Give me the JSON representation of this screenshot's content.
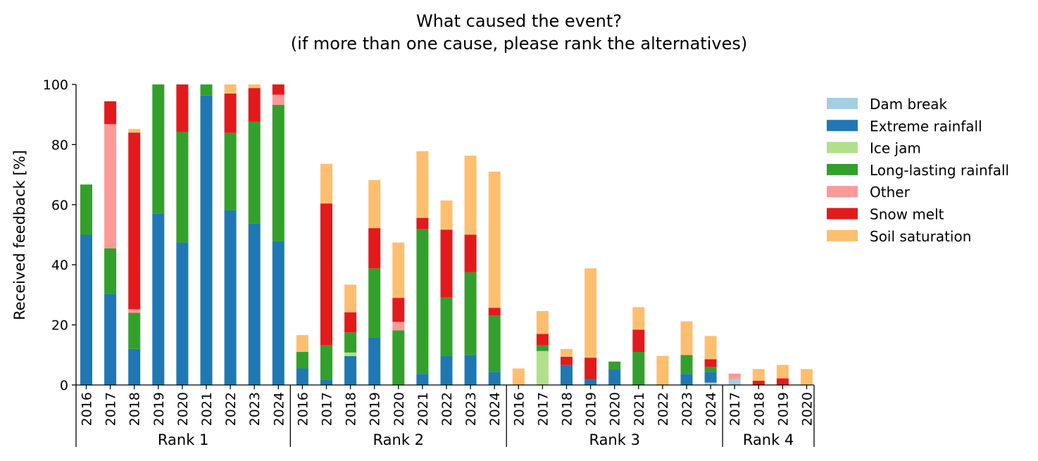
{
  "chart_data": {
    "type": "bar",
    "stacked": true,
    "title": [
      "What caused the event?",
      "(if more than one cause, please rank the alternatives)"
    ],
    "xlabel": "",
    "ylabel": "Received feedback [%]",
    "ylim": [
      0,
      100
    ],
    "yticks": [
      0,
      20,
      40,
      60,
      80,
      100
    ],
    "legend_position": "top-right, outside plot",
    "series": [
      {
        "name": "Dam break",
        "color": "#a6cee3"
      },
      {
        "name": "Extreme rainfall",
        "color": "#1f78b4"
      },
      {
        "name": "Ice jam",
        "color": "#b2df8a"
      },
      {
        "name": "Long-lasting rainfall",
        "color": "#33a02c"
      },
      {
        "name": "Other",
        "color": "#fb9a99"
      },
      {
        "name": "Snow melt",
        "color": "#e31a1c"
      },
      {
        "name": "Soil saturation",
        "color": "#fdbf6f"
      }
    ],
    "groups": [
      {
        "name": "Rank 1",
        "bars": [
          {
            "year": "2016",
            "values": [
              0,
              50.0,
              0,
              16.7,
              0,
              0,
              0
            ]
          },
          {
            "year": "2017",
            "values": [
              0,
              30.3,
              0,
              15.2,
              41.3,
              7.6,
              0
            ]
          },
          {
            "year": "2018",
            "values": [
              0,
              12.0,
              0,
              12.0,
              1.2,
              58.8,
              1.2
            ]
          },
          {
            "year": "2019",
            "values": [
              0,
              57.0,
              0,
              43.0,
              0,
              0,
              0
            ]
          },
          {
            "year": "2020",
            "values": [
              0,
              47.4,
              0,
              36.8,
              0,
              15.8,
              0
            ]
          },
          {
            "year": "2021",
            "values": [
              0,
              96.3,
              0,
              3.7,
              0,
              0,
              0
            ]
          },
          {
            "year": "2022",
            "values": [
              0,
              58.1,
              0,
              25.8,
              0,
              13.1,
              3.0
            ]
          },
          {
            "year": "2023",
            "values": [
              0,
              53.8,
              0,
              33.8,
              0,
              11.2,
              1.2
            ]
          },
          {
            "year": "2024",
            "values": [
              0,
              47.8,
              0,
              45.4,
              3.4,
              3.4,
              0
            ]
          }
        ]
      },
      {
        "name": "Rank 2",
        "bars": [
          {
            "year": "2016",
            "values": [
              0,
              5.5,
              0,
              5.5,
              0,
              0,
              5.6
            ]
          },
          {
            "year": "2017",
            "values": [
              0,
              1.8,
              0,
              11.4,
              0,
              47.2,
              13.2
            ]
          },
          {
            "year": "2018",
            "values": [
              0,
              9.6,
              1.2,
              6.7,
              0,
              6.7,
              9.2
            ]
          },
          {
            "year": "2019",
            "values": [
              0,
              15.9,
              0,
              22.9,
              0,
              13.4,
              16.0
            ]
          },
          {
            "year": "2020",
            "values": [
              0,
              0,
              0,
              18.2,
              2.8,
              8.0,
              18.4
            ]
          },
          {
            "year": "2021",
            "values": [
              0,
              3.7,
              0,
              48.2,
              0,
              3.7,
              22.2
            ]
          },
          {
            "year": "2022",
            "values": [
              0,
              9.7,
              0,
              19.4,
              0,
              22.6,
              9.7
            ]
          },
          {
            "year": "2023",
            "values": [
              0,
              10.0,
              0,
              27.5,
              0,
              12.5,
              26.3
            ]
          },
          {
            "year": "2024",
            "values": [
              0,
              4.3,
              0,
              18.8,
              0,
              2.6,
              45.3
            ]
          }
        ]
      },
      {
        "name": "Rank 3",
        "bars": [
          {
            "year": "2016",
            "values": [
              0,
              0,
              0,
              0,
              0,
              0,
              5.5
            ]
          },
          {
            "year": "2017",
            "values": [
              0,
              0,
              11.3,
              1.9,
              0,
              3.8,
              7.6
            ]
          },
          {
            "year": "2018",
            "values": [
              0,
              6.7,
              0,
              0,
              0,
              2.7,
              2.6
            ]
          },
          {
            "year": "2019",
            "values": [
              0,
              2.0,
              0,
              0,
              0,
              7.1,
              29.7
            ]
          },
          {
            "year": "2020",
            "values": [
              0,
              5.3,
              0,
              2.5,
              0,
              0,
              0
            ]
          },
          {
            "year": "2021",
            "values": [
              0,
              0,
              0,
              11.0,
              0,
              7.4,
              7.5
            ]
          },
          {
            "year": "2022",
            "values": [
              0,
              0,
              0,
              0,
              0,
              0,
              9.7
            ]
          },
          {
            "year": "2023",
            "values": [
              0,
              3.7,
              0,
              6.3,
              0,
              0,
              11.2
            ]
          },
          {
            "year": "2024",
            "values": [
              0.8,
              3.5,
              0,
              1.7,
              0,
              2.6,
              7.7
            ]
          }
        ]
      },
      {
        "name": "Rank 4",
        "bars": [
          {
            "year": "2017",
            "values": [
              2.0,
              0,
              0,
              0,
              1.8,
              0,
              0
            ]
          },
          {
            "year": "2018",
            "values": [
              0,
              0,
              0,
              0,
              0,
              1.4,
              3.9
            ]
          },
          {
            "year": "2019",
            "values": [
              0,
              0,
              0,
              0,
              0,
              2.2,
              4.5
            ]
          },
          {
            "year": "2020",
            "values": [
              0,
              0,
              0,
              0,
              0,
              0,
              5.3
            ]
          }
        ]
      }
    ]
  }
}
